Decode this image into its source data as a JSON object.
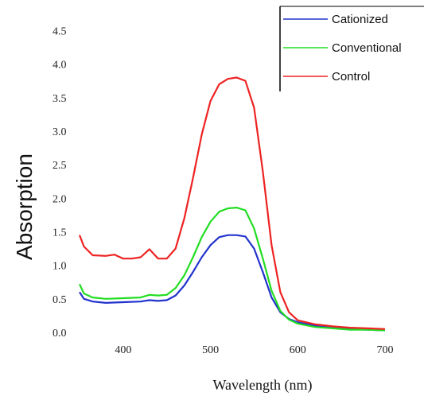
{
  "chart_data": {
    "type": "line",
    "xlabel": "Wavelength (nm)",
    "ylabel": "Absorption",
    "xlim": [
      350,
      710
    ],
    "ylim": [
      0,
      4.6
    ],
    "xticks": [
      400,
      500,
      600,
      700
    ],
    "xtick_labels": [
      "400",
      "500",
      "600",
      "700"
    ],
    "yticks": [
      0,
      0.5,
      1.0,
      1.5,
      2.0,
      2.5,
      3.0,
      3.5,
      4.0,
      4.5
    ],
    "ytick_labels": [
      "0.0",
      "0.5",
      "1.0",
      "1.5",
      "2.0",
      "2.5",
      "3.0",
      "3.5",
      "4.0",
      "4.5"
    ],
    "grid": false,
    "legend_position": "top-right",
    "series": [
      {
        "name": "Cationized",
        "color": "#2233cc",
        "x": [
          350,
          355,
          365,
          380,
          400,
          420,
          430,
          440,
          450,
          460,
          470,
          480,
          490,
          500,
          510,
          520,
          530,
          540,
          550,
          560,
          570,
          580,
          590,
          600,
          620,
          640,
          660,
          680,
          700
        ],
        "y": [
          0.6,
          0.5,
          0.46,
          0.44,
          0.45,
          0.46,
          0.48,
          0.47,
          0.48,
          0.55,
          0.7,
          0.9,
          1.12,
          1.3,
          1.42,
          1.45,
          1.45,
          1.43,
          1.25,
          0.9,
          0.52,
          0.3,
          0.2,
          0.15,
          0.1,
          0.07,
          0.05,
          0.04,
          0.03
        ]
      },
      {
        "name": "Conventional",
        "color": "#22dd22",
        "x": [
          350,
          355,
          365,
          380,
          400,
          420,
          430,
          440,
          450,
          460,
          470,
          480,
          490,
          500,
          510,
          520,
          530,
          540,
          550,
          560,
          570,
          580,
          590,
          600,
          620,
          640,
          660,
          680,
          700
        ],
        "y": [
          0.72,
          0.58,
          0.52,
          0.5,
          0.51,
          0.52,
          0.56,
          0.55,
          0.56,
          0.66,
          0.85,
          1.12,
          1.42,
          1.65,
          1.8,
          1.85,
          1.86,
          1.82,
          1.55,
          1.1,
          0.62,
          0.32,
          0.19,
          0.13,
          0.08,
          0.06,
          0.04,
          0.04,
          0.03
        ]
      },
      {
        "name": "Control",
        "color": "#ee2222",
        "x": [
          350,
          355,
          365,
          380,
          390,
          400,
          410,
          420,
          430,
          440,
          450,
          460,
          470,
          480,
          490,
          500,
          510,
          520,
          530,
          540,
          550,
          560,
          570,
          580,
          590,
          600,
          620,
          640,
          660,
          680,
          700
        ],
        "y": [
          1.45,
          1.28,
          1.15,
          1.14,
          1.16,
          1.1,
          1.1,
          1.12,
          1.24,
          1.1,
          1.1,
          1.25,
          1.7,
          2.3,
          2.95,
          3.45,
          3.7,
          3.78,
          3.8,
          3.75,
          3.35,
          2.4,
          1.3,
          0.6,
          0.3,
          0.18,
          0.12,
          0.09,
          0.07,
          0.06,
          0.05
        ]
      }
    ]
  }
}
